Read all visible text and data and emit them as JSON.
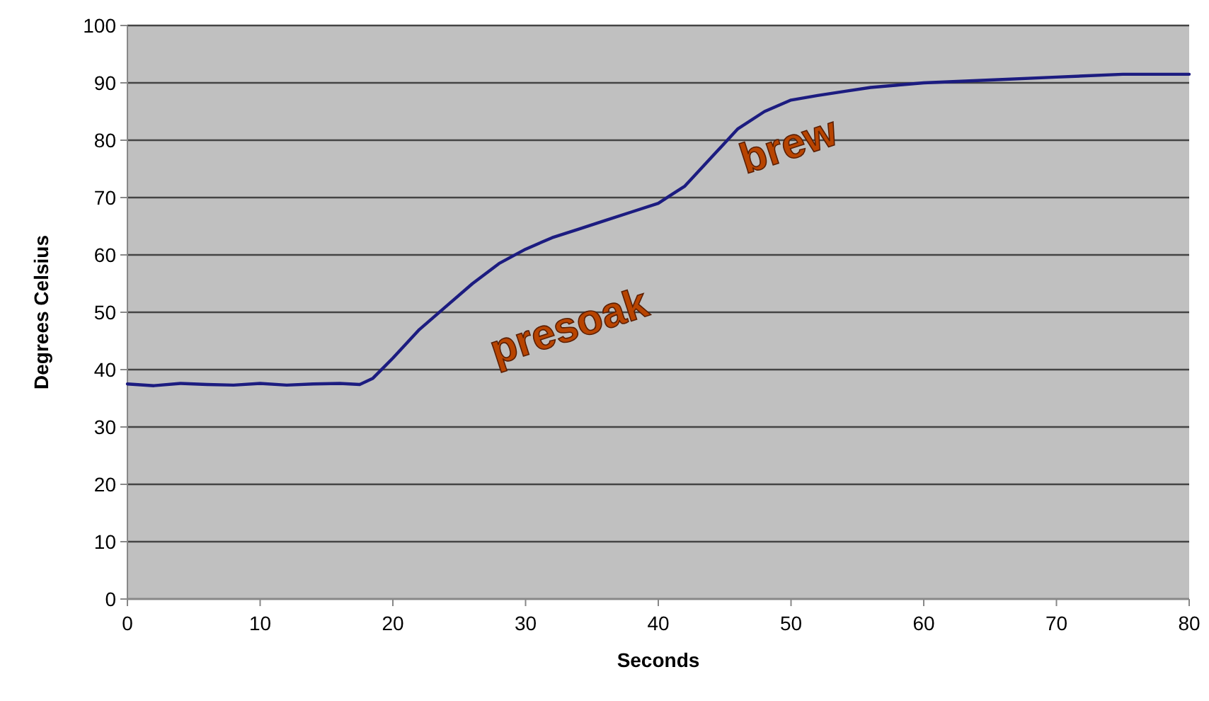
{
  "chart_data": {
    "type": "line",
    "xlabel": "Seconds",
    "ylabel": "Degrees Celsius",
    "xlim": [
      0,
      80
    ],
    "xticks": [
      0,
      10,
      20,
      30,
      40,
      50,
      60,
      70,
      80
    ],
    "ylim": [
      0,
      100
    ],
    "yticks": [
      0,
      10,
      20,
      30,
      40,
      50,
      60,
      70,
      80,
      90,
      100
    ],
    "grid": "y",
    "marker": "none",
    "line_style": "solid",
    "annotations": [
      "presoak",
      "brew"
    ],
    "series": [
      {
        "color": "#1c1c80",
        "x": [
          0,
          2,
          4,
          6,
          8,
          10,
          12,
          14,
          16,
          17.5,
          18.5,
          20,
          22,
          24,
          26,
          28,
          30,
          32,
          34,
          36,
          38,
          40,
          41,
          42,
          44,
          46,
          48,
          50,
          52,
          54,
          56,
          58,
          60,
          65,
          70,
          75,
          80
        ],
        "values": [
          37.5,
          37.2,
          37.6,
          37.4,
          37.3,
          37.6,
          37.3,
          37.5,
          37.6,
          37.4,
          38.5,
          42,
          47,
          51,
          55,
          58.5,
          61,
          63,
          64.5,
          66,
          67.5,
          69,
          70.5,
          72,
          77,
          82,
          85,
          87,
          87.8,
          88.5,
          89.2,
          89.6,
          90,
          90.5,
          91,
          91.5,
          91.5
        ]
      }
    ]
  }
}
